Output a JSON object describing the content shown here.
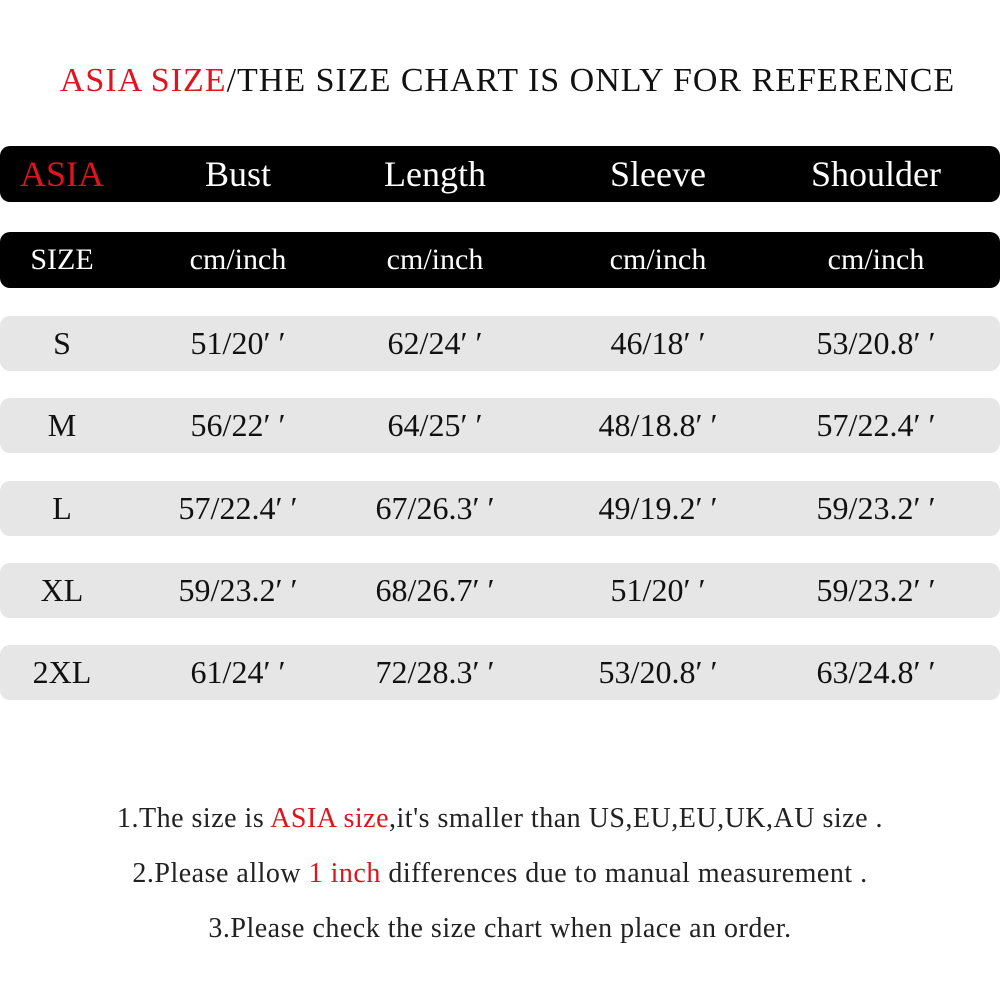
{
  "header": {
    "title_red": "ASIA SIZE",
    "title_rest": "/THE SIZE CHART IS ONLY FOR REFERENCE"
  },
  "table": {
    "columns": [
      "ASIA",
      "Bust",
      "Length",
      "Sleeve",
      "Shoulder"
    ],
    "units": [
      "SIZE",
      "cm/inch",
      "cm/inch",
      "cm/inch",
      "cm/inch"
    ],
    "rows": [
      [
        "S",
        "51/20′ ′",
        "62/24′ ′",
        "46/18′ ′",
        "53/20.8′ ′"
      ],
      [
        "M",
        "56/22′ ′",
        "64/25′ ′",
        "48/18.8′ ′",
        "57/22.4′ ′"
      ],
      [
        "L",
        "57/22.4′ ′",
        "67/26.3′ ′",
        "49/19.2′ ′",
        "59/23.2′ ′"
      ],
      [
        "XL",
        "59/23.2′ ′",
        "68/26.7′ ′",
        "51/20′ ′",
        "59/23.2′ ′"
      ],
      [
        "2XL",
        "61/24′ ′",
        "72/28.3′ ′",
        "53/20.8′ ′",
        "63/24.8′ ′"
      ]
    ]
  },
  "notes": [
    [
      "1.The size is ",
      "ASIA size",
      ",it's smaller than US,EU,EU,UK,AU size ."
    ],
    [
      "2.Please allow ",
      "1 inch",
      " differences due to manual measurement ."
    ],
    [
      "3.Please check the size chart when place an order."
    ]
  ]
}
